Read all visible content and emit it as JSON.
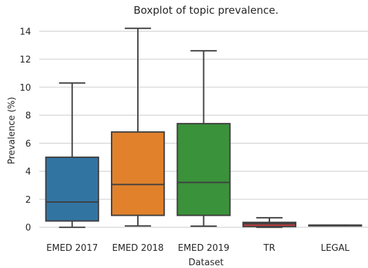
{
  "chart_data": {
    "type": "boxplot",
    "title": "Boxplot of topic prevalence.",
    "xlabel": "Dataset",
    "ylabel": "Prevalence (%)",
    "ylim": [
      -0.7,
      14.9
    ],
    "yticks": [
      0,
      2,
      4,
      6,
      8,
      10,
      12,
      14
    ],
    "grid": "horizontal",
    "categories": [
      "EMED 2017",
      "EMED 2018",
      "EMED 2019",
      "TR",
      "LEGAL"
    ],
    "boxes": [
      {
        "label": "EMED 2017",
        "whisker_low": 0.0,
        "q1": 0.45,
        "median": 1.8,
        "q3": 5.0,
        "whisker_high": 10.3,
        "color": "#3274a1"
      },
      {
        "label": "EMED 2018",
        "whisker_low": 0.1,
        "q1": 0.85,
        "median": 3.05,
        "q3": 6.8,
        "whisker_high": 14.2,
        "color": "#e1812c"
      },
      {
        "label": "EMED 2019",
        "whisker_low": 0.08,
        "q1": 0.85,
        "median": 3.2,
        "q3": 7.4,
        "whisker_high": 12.6,
        "color": "#3a923a"
      },
      {
        "label": "TR",
        "whisker_low": 0.0,
        "q1": 0.05,
        "median": 0.25,
        "q3": 0.35,
        "whisker_high": 0.68,
        "color": "#c03d3e"
      },
      {
        "label": "LEGAL",
        "whisker_low": 0.15,
        "q1": 0.15,
        "median": 0.15,
        "q3": 0.15,
        "whisker_high": 0.15,
        "color": "#9372b2"
      }
    ]
  }
}
